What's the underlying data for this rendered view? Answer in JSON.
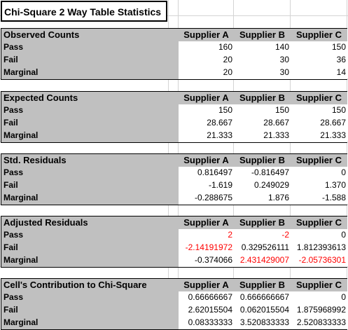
{
  "title": "Chi-Square 2 Way Table Statistics",
  "columns": [
    "Supplier A",
    "Supplier B",
    "Supplier C"
  ],
  "row_labels": [
    "Pass",
    "Fail",
    "Marginal"
  ],
  "sections": [
    {
      "label": "Observed Counts",
      "rows": [
        [
          "160",
          "140",
          "150"
        ],
        [
          "20",
          "30",
          "36"
        ],
        [
          "20",
          "30",
          "14"
        ]
      ]
    },
    {
      "label": "Expected Counts",
      "rows": [
        [
          "150",
          "150",
          "150"
        ],
        [
          "28.667",
          "28.667",
          "28.667"
        ],
        [
          "21.333",
          "21.333",
          "21.333"
        ]
      ]
    },
    {
      "label": "Std. Residuals",
      "rows": [
        [
          "0.816497",
          "-0.816497",
          "0"
        ],
        [
          "-1.619",
          "0.249029",
          "1.370"
        ],
        [
          "-0.288675",
          "1.876",
          "-1.588"
        ]
      ]
    },
    {
      "label": "Adjusted Residuals",
      "rows": [
        [
          "2",
          "-2",
          "0"
        ],
        [
          "-2.14191972",
          "0.329526111",
          "1.812393613"
        ],
        [
          "-0.374066",
          "2.431429007",
          "-2.05736301"
        ]
      ],
      "red": [
        [
          true,
          true,
          false
        ],
        [
          true,
          false,
          false
        ],
        [
          false,
          true,
          true
        ]
      ]
    },
    {
      "label": "Cell's Contribution to Chi-Square",
      "rows": [
        [
          "0.66666667",
          "0.666666667",
          "0"
        ],
        [
          "2.62015504",
          "0.062015504",
          "1.875968992"
        ],
        [
          "0.08333333",
          "3.520833333",
          "2.520833333"
        ]
      ]
    }
  ],
  "colors": {
    "header_bg": "#c0c0c0",
    "highlight_text": "#ff0000",
    "gridline": "#d4d4d4"
  }
}
